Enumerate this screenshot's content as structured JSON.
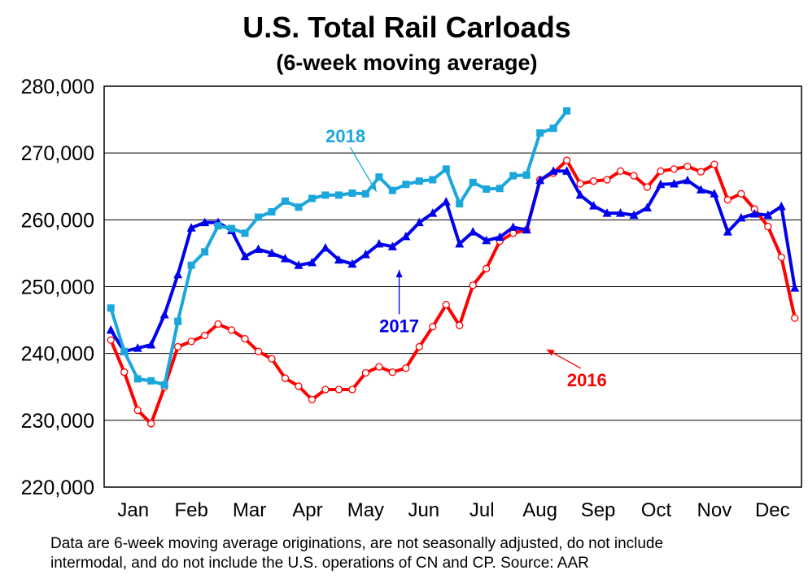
{
  "chart_data": {
    "type": "line",
    "title": "U.S. Total Rail Carloads",
    "subtitle": "(6-week moving average)",
    "xlabel": "",
    "ylabel": "",
    "ylim": [
      220000,
      280000
    ],
    "yticks": [
      220000,
      230000,
      240000,
      250000,
      260000,
      270000,
      280000
    ],
    "ytick_labels": [
      "220,000",
      "230,000",
      "240,000",
      "250,000",
      "260,000",
      "270,000",
      "280,000"
    ],
    "x_range": [
      0.5,
      52.5
    ],
    "months": [
      "Jan",
      "Feb",
      "Mar",
      "Apr",
      "May",
      "Jun",
      "Jul",
      "Aug",
      "Sep",
      "Oct",
      "Nov",
      "Dec"
    ],
    "grid": "horizontal",
    "legend": "none",
    "series": [
      {
        "name": "2016",
        "color": "#ff0000",
        "marker": "open-circle",
        "x": [
          1,
          2,
          3,
          4,
          5,
          6,
          7,
          8,
          9,
          10,
          11,
          12,
          13,
          14,
          15,
          16,
          17,
          18,
          19,
          20,
          21,
          22,
          23,
          24,
          25,
          26,
          27,
          28,
          29,
          30,
          31,
          32,
          33,
          34,
          35,
          36,
          37,
          38,
          39,
          40,
          41,
          42,
          43,
          44,
          45,
          46,
          47,
          48,
          49,
          50,
          51,
          52
        ],
        "values": [
          242000,
          237200,
          231500,
          229500,
          235000,
          241000,
          241800,
          242700,
          244400,
          243500,
          242200,
          240300,
          239200,
          236300,
          235100,
          233100,
          234600,
          234600,
          234600,
          237100,
          238000,
          237200,
          237800,
          241000,
          244000,
          247300,
          244200,
          250200,
          252700,
          256800,
          258000,
          258500,
          266000,
          267000,
          268900,
          265400,
          265800,
          266000,
          267300,
          266600,
          264900,
          267300,
          267600,
          268000,
          267200,
          268300,
          263000,
          263900,
          261600,
          259000,
          254400,
          245300
        ]
      },
      {
        "name": "2017",
        "color": "#0000ee",
        "marker": "triangle",
        "x": [
          1,
          2,
          3,
          4,
          5,
          6,
          7,
          8,
          9,
          10,
          11,
          12,
          13,
          14,
          15,
          16,
          17,
          18,
          19,
          20,
          21,
          22,
          23,
          24,
          25,
          26,
          27,
          28,
          29,
          30,
          31,
          32,
          33,
          34,
          35,
          36,
          37,
          38,
          39,
          40,
          41,
          42,
          43,
          44,
          45,
          46,
          47,
          48,
          49,
          50,
          51,
          52
        ],
        "values": [
          243500,
          240300,
          240800,
          241300,
          245800,
          251800,
          258800,
          259600,
          259600,
          258400,
          254500,
          255600,
          255000,
          254200,
          253200,
          253600,
          255800,
          254000,
          253400,
          254800,
          256400,
          256000,
          257500,
          259600,
          261000,
          262700,
          256400,
          258200,
          256900,
          257400,
          258900,
          258500,
          265900,
          267300,
          267300,
          263700,
          262100,
          261000,
          261000,
          260700,
          261800,
          265300,
          265400,
          265900,
          264500,
          263900,
          258200,
          260300,
          260900,
          260700,
          262000,
          249800
        ]
      },
      {
        "name": "2018",
        "color": "#1ba6dc",
        "marker": "square",
        "x": [
          1,
          2,
          3,
          4,
          5,
          6,
          7,
          8,
          9,
          10,
          11,
          12,
          13,
          14,
          15,
          16,
          17,
          18,
          19,
          20,
          21,
          22,
          23,
          24,
          25,
          26,
          27,
          28,
          29,
          30,
          31,
          32,
          33,
          34,
          35
        ],
        "values": [
          246800,
          240300,
          236200,
          235900,
          235300,
          244800,
          253200,
          255200,
          259100,
          258700,
          258000,
          260400,
          261200,
          262800,
          261900,
          263200,
          263700,
          263700,
          264000,
          263900,
          266400,
          264400,
          265300,
          265800,
          266000,
          267600,
          262400,
          265600,
          264600,
          264700,
          266600,
          266700,
          273000,
          273700,
          276300
        ]
      }
    ],
    "annotations": [
      {
        "text": "2018",
        "color": "#1ba6dc",
        "x": 18.5,
        "y": 271600,
        "arrow_to": [
          20.8,
          264200
        ]
      },
      {
        "text": "2017",
        "color": "#0000ee",
        "x": 22.5,
        "y": 243200,
        "arrow_to": [
          22.5,
          252500
        ]
      },
      {
        "text": "2016",
        "color": "#ff0000",
        "x": 36.5,
        "y": 235100,
        "arrow_to": [
          33.5,
          240600
        ]
      }
    ]
  },
  "footnote": {
    "line1": "Data are 6-week moving average originations, are not seasonally adjusted, do not include",
    "line2": "intermodal, and do not include the U.S. operations of CN and CP.   Source: AAR"
  }
}
